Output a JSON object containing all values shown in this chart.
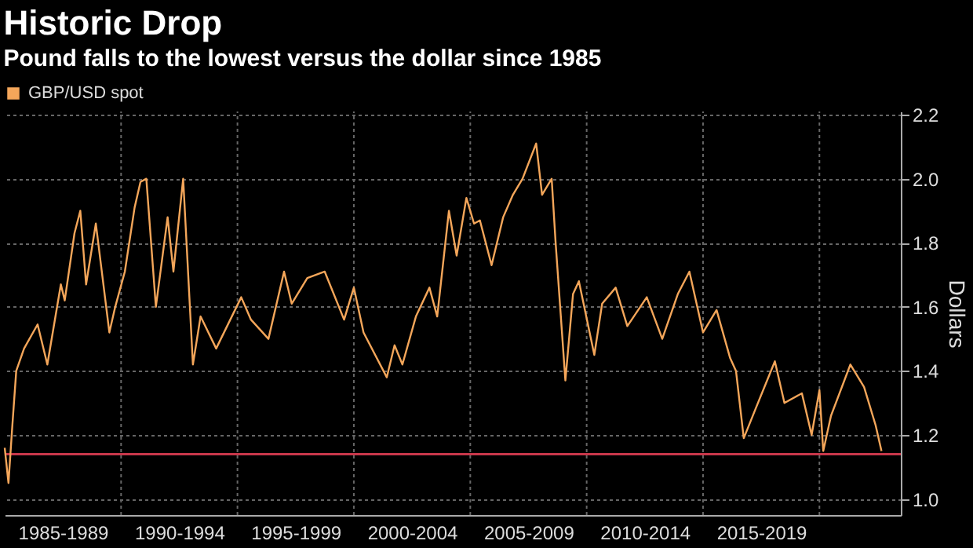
{
  "chart_data": {
    "type": "line",
    "title": "Historic Drop",
    "subtitle": "Pound falls to the lowest versus the dollar since 1985",
    "ylabel": "Dollars",
    "xlim": [
      "1985-01",
      "2023-07"
    ],
    "ylim": [
      0.95,
      2.21
    ],
    "xticks": [
      {
        "value": "1987-07",
        "label": "1985-1989"
      },
      {
        "value": "1990-01",
        "label": null
      },
      {
        "value": "1992-07",
        "label": "1990-1994"
      },
      {
        "value": "1995-01",
        "label": null
      },
      {
        "value": "1997-07",
        "label": "1995-1999"
      },
      {
        "value": "2000-01",
        "label": null
      },
      {
        "value": "2002-07",
        "label": "2000-2004"
      },
      {
        "value": "2005-01",
        "label": null
      },
      {
        "value": "2007-07",
        "label": "2005-2009"
      },
      {
        "value": "2010-01",
        "label": null
      },
      {
        "value": "2012-07",
        "label": "2010-2014"
      },
      {
        "value": "2015-01",
        "label": null
      },
      {
        "value": "2017-07",
        "label": "2015-2019"
      },
      {
        "value": "2020-01",
        "label": null
      }
    ],
    "yticks": [
      {
        "value": 1,
        "label": "1.0"
      },
      1.2,
      1.4,
      1.6,
      1.8,
      {
        "value": 2,
        "label": "2.0"
      },
      2.2
    ],
    "grid": true,
    "legend": "top left",
    "line_style": "solid",
    "marker": "none",
    "ref_lines": [
      {
        "axis": "y",
        "value": 1.14,
        "color": "#c8374a"
      }
    ],
    "series": [
      {
        "name": "GBP/USD spot",
        "color": "#f4a65a",
        "x": [
          "1985-01",
          "1985-03",
          "1985-05",
          "1985-07",
          "1985-11",
          "1986-06",
          "1986-11",
          "1987-06",
          "1987-08",
          "1988-01",
          "1988-04",
          "1988-07",
          "1988-12",
          "1989-07",
          "1989-10",
          "1990-03",
          "1990-08",
          "1990-11",
          "1991-02",
          "1991-07",
          "1992-01",
          "1992-04",
          "1992-09",
          "1993-02",
          "1993-06",
          "1994-02",
          "1995-03",
          "1995-08",
          "1996-05",
          "1997-01",
          "1997-05",
          "1998-01",
          "1998-10",
          "1999-08",
          "2000-01",
          "2000-06",
          "2001-06",
          "2001-10",
          "2002-02",
          "2002-09",
          "2003-04",
          "2003-08",
          "2004-02",
          "2004-06",
          "2004-11",
          "2005-03",
          "2005-06",
          "2005-12",
          "2006-06",
          "2006-11",
          "2007-04",
          "2007-11",
          "2008-02",
          "2008-07",
          "2008-09",
          "2009-02",
          "2009-06",
          "2009-09",
          "2010-05",
          "2010-09",
          "2011-04",
          "2011-10",
          "2012-08",
          "2013-04",
          "2013-12",
          "2014-06",
          "2015-01",
          "2015-08",
          "2016-03",
          "2016-06",
          "2016-10",
          "2017-04",
          "2018-02",
          "2018-07",
          "2019-04",
          "2019-09",
          "2020-01",
          "2020-03",
          "2020-07",
          "2021-05",
          "2021-12",
          "2022-06",
          "2022-09"
        ],
        "values": [
          1.16,
          1.05,
          1.23,
          1.4,
          1.47,
          1.545,
          1.42,
          1.67,
          1.62,
          1.83,
          1.9,
          1.67,
          1.86,
          1.52,
          1.6,
          1.71,
          1.91,
          1.99,
          2.0,
          1.6,
          1.88,
          1.71,
          2.0,
          1.42,
          1.57,
          1.47,
          1.63,
          1.56,
          1.5,
          1.71,
          1.61,
          1.69,
          1.71,
          1.56,
          1.66,
          1.52,
          1.38,
          1.48,
          1.42,
          1.57,
          1.66,
          1.57,
          1.9,
          1.76,
          1.94,
          1.86,
          1.87,
          1.73,
          1.88,
          1.95,
          2.0,
          2.11,
          1.95,
          2.0,
          1.8,
          1.37,
          1.64,
          1.68,
          1.45,
          1.61,
          1.66,
          1.54,
          1.63,
          1.5,
          1.64,
          1.71,
          1.52,
          1.59,
          1.44,
          1.4,
          1.19,
          1.28,
          1.43,
          1.3,
          1.33,
          1.2,
          1.34,
          1.15,
          1.26,
          1.42,
          1.35,
          1.23,
          1.15
        ]
      }
    ]
  }
}
